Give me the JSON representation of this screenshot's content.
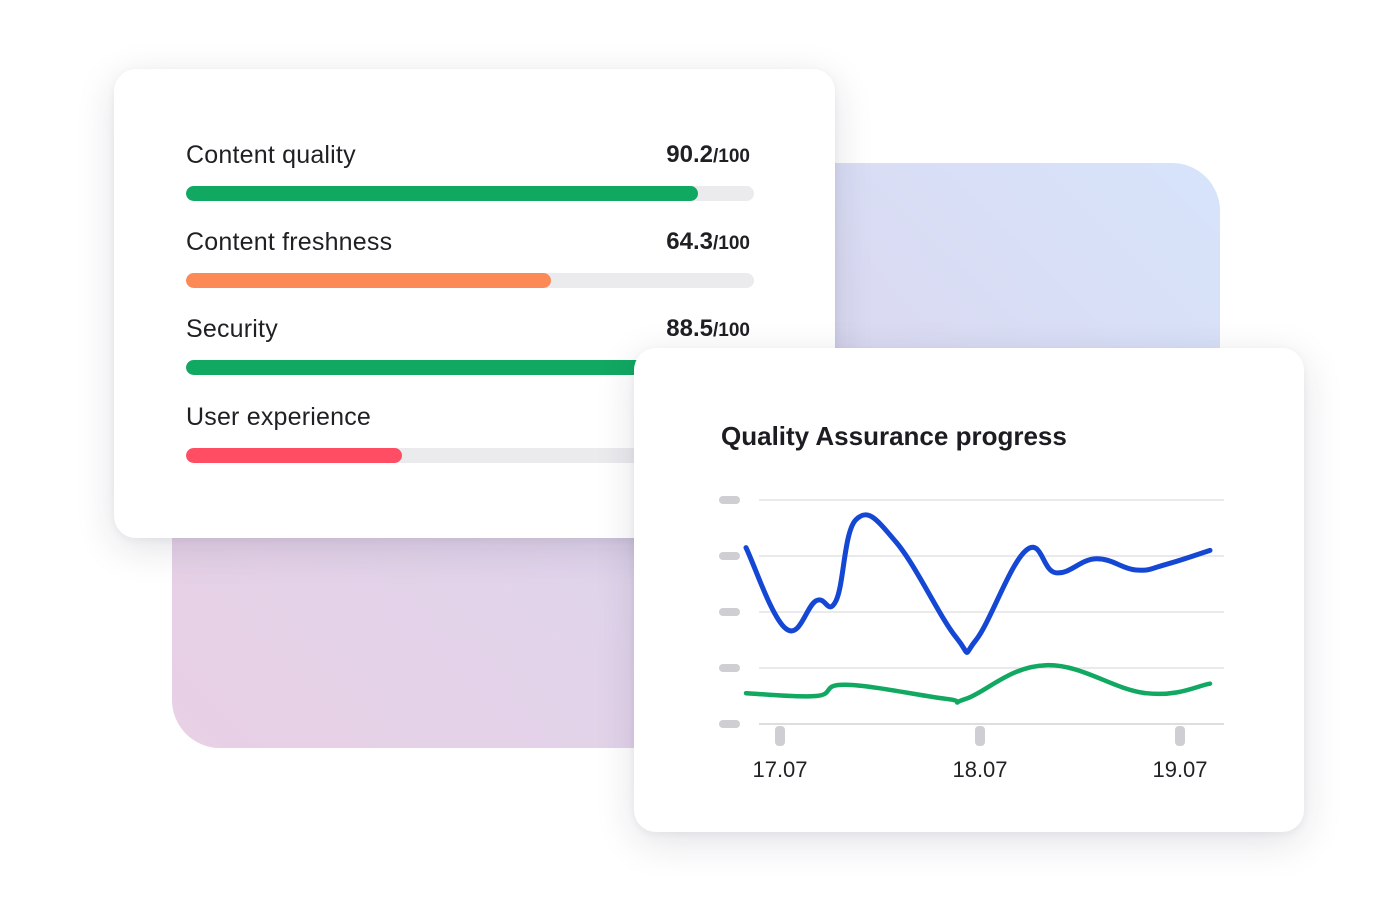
{
  "scores": {
    "items": [
      {
        "label": "Content quality",
        "value": "90.2",
        "max": "/100",
        "fraction": 0.902,
        "color": "#11a862"
      },
      {
        "label": "Content freshness",
        "value": "64.3",
        "max": "/100",
        "fraction": 0.643,
        "color": "#fc8a57"
      },
      {
        "label": "Security",
        "value": "88.5",
        "max": "/100",
        "fraction": 0.885,
        "color": "#11a862"
      },
      {
        "label": "User experience",
        "value": "",
        "max": "",
        "fraction": 0.38,
        "color": "#ff4e63"
      }
    ]
  },
  "chart_data": {
    "type": "line",
    "title": "Quality Assurance progress",
    "x_ticks": [
      "17.07",
      "18.07",
      "19.07"
    ],
    "ylim": [
      0,
      4
    ],
    "grid": true,
    "legend": "none",
    "series": [
      {
        "color": "#1447d4",
        "x": [
          16.9,
          17.1,
          17.25,
          17.35,
          17.45,
          17.65,
          17.95,
          18.05,
          18.3,
          18.45,
          18.65,
          18.85,
          19.0,
          19.22
        ],
        "y": [
          3.15,
          1.7,
          2.2,
          2.2,
          3.65,
          3.25,
          1.55,
          1.5,
          3.1,
          2.7,
          2.95,
          2.75,
          2.85,
          3.1
        ]
      },
      {
        "color": "#11a862",
        "x": [
          16.9,
          17.25,
          17.4,
          17.9,
          18.0,
          18.4,
          18.9,
          19.22
        ],
        "y": [
          0.55,
          0.5,
          0.7,
          0.45,
          0.45,
          1.05,
          0.55,
          0.72
        ]
      }
    ]
  }
}
